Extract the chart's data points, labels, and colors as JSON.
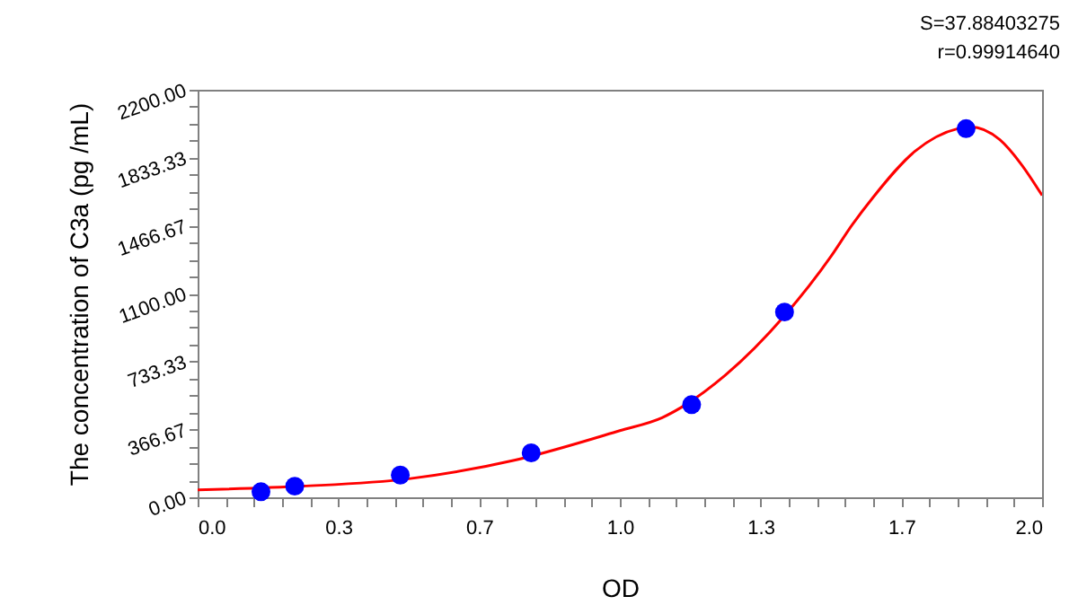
{
  "chart_data": {
    "type": "scatter",
    "xlabel": "OD",
    "ylabel": "The concentration of C3a (pg /mL)",
    "annotations": [
      "S=37.88403275",
      "r=0.99914640"
    ],
    "xlim": [
      0,
      2
    ],
    "ylim": [
      0,
      2200
    ],
    "xticks": [
      {
        "value": 0,
        "label": "0.0"
      },
      {
        "value": 0.0667,
        "label": null
      },
      {
        "value": 0.1333,
        "label": null
      },
      {
        "value": 0.2,
        "label": null
      },
      {
        "value": 0.2667,
        "label": null
      },
      {
        "value": 0.3333,
        "label": "0.3"
      },
      {
        "value": 0.4,
        "label": null
      },
      {
        "value": 0.4667,
        "label": null
      },
      {
        "value": 0.5333,
        "label": null
      },
      {
        "value": 0.6,
        "label": null
      },
      {
        "value": 0.6667,
        "label": "0.7"
      },
      {
        "value": 0.7333,
        "label": null
      },
      {
        "value": 0.8,
        "label": null
      },
      {
        "value": 0.8667,
        "label": null
      },
      {
        "value": 0.9333,
        "label": null
      },
      {
        "value": 1,
        "label": "1.0"
      },
      {
        "value": 1.0667,
        "label": null
      },
      {
        "value": 1.1333,
        "label": null
      },
      {
        "value": 1.2,
        "label": null
      },
      {
        "value": 1.2667,
        "label": null
      },
      {
        "value": 1.3333,
        "label": "1.3"
      },
      {
        "value": 1.4,
        "label": null
      },
      {
        "value": 1.4667,
        "label": null
      },
      {
        "value": 1.5333,
        "label": null
      },
      {
        "value": 1.6,
        "label": null
      },
      {
        "value": 1.6667,
        "label": "1.7"
      },
      {
        "value": 1.7333,
        "label": null
      },
      {
        "value": 1.8,
        "label": null
      },
      {
        "value": 1.8667,
        "label": null
      },
      {
        "value": 1.9333,
        "label": null
      },
      {
        "value": 2,
        "label": "2.0"
      }
    ],
    "yticks": [
      {
        "value": 0,
        "label": "0.00"
      },
      {
        "value": 91.67,
        "label": null
      },
      {
        "value": 183.33,
        "label": null
      },
      {
        "value": 275,
        "label": null
      },
      {
        "value": 366.67,
        "label": "366.67"
      },
      {
        "value": 458.33,
        "label": null
      },
      {
        "value": 550,
        "label": null
      },
      {
        "value": 641.67,
        "label": null
      },
      {
        "value": 733.33,
        "label": "733.33"
      },
      {
        "value": 825,
        "label": null
      },
      {
        "value": 916.67,
        "label": null
      },
      {
        "value": 1008.33,
        "label": null
      },
      {
        "value": 1100,
        "label": "1100.00"
      },
      {
        "value": 1191.67,
        "label": null
      },
      {
        "value": 1283.33,
        "label": null
      },
      {
        "value": 1375,
        "label": null
      },
      {
        "value": 1466.67,
        "label": "1466.67"
      },
      {
        "value": 1558.33,
        "label": null
      },
      {
        "value": 1650,
        "label": null
      },
      {
        "value": 1741.67,
        "label": null
      },
      {
        "value": 1833.33,
        "label": "1833.33"
      },
      {
        "value": 1925,
        "label": null
      },
      {
        "value": 2016.67,
        "label": null
      },
      {
        "value": 2108.33,
        "label": null
      },
      {
        "value": 2200,
        "label": "2200.00"
      }
    ],
    "grid": false,
    "series": [
      {
        "type": "line",
        "color": "#ff0000",
        "x": [
          0,
          0.25,
          0.5,
          0.75,
          1.0,
          1.1,
          1.25,
          1.39,
          1.5,
          1.55,
          1.6,
          1.7,
          1.8,
          1.83,
          1.9,
          1.95,
          2.0
        ],
        "values": [
          40,
          60,
          100,
          200,
          360,
          430,
          660,
          980,
          1300,
          1470,
          1620,
          1870,
          1990,
          2000,
          1930,
          1800,
          1630
        ]
      },
      {
        "color": "#0000ff",
        "marker": "circle",
        "x": [
          0.15,
          0.23,
          0.48,
          0.79,
          1.17,
          1.39,
          1.82
        ],
        "values": [
          30,
          60,
          120,
          240,
          500,
          1000,
          1990
        ]
      }
    ]
  }
}
